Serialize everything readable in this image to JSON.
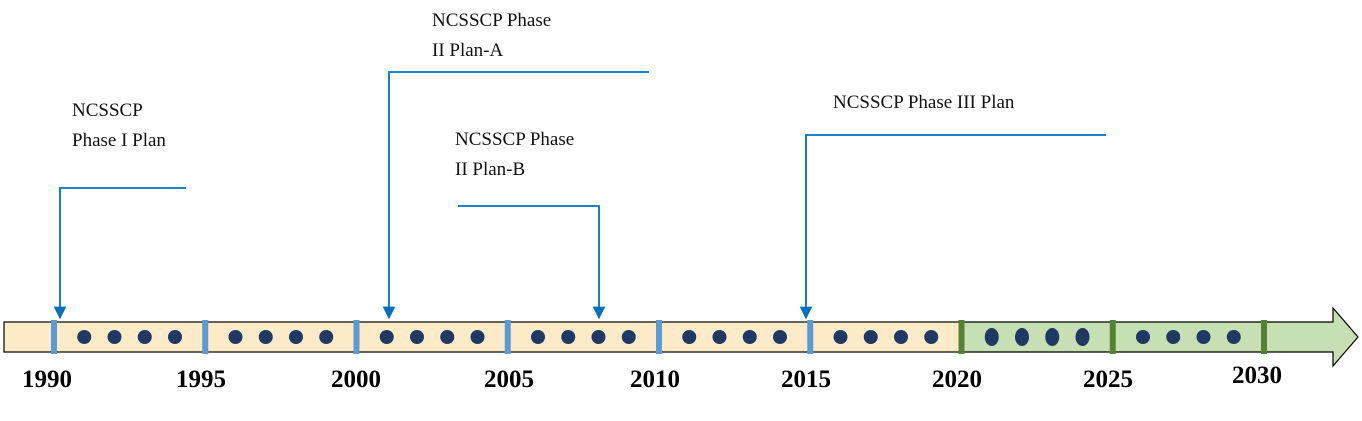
{
  "timeline": {
    "past_fill": "#fdebc8",
    "future_fill": "#c6e0b4",
    "past_tick_color": "#5b9bd5",
    "future_tick_color": "#548235",
    "dot_color": "#1f3864",
    "callout_color": "#0070c0",
    "years": [
      "1990",
      "1995",
      "2000",
      "2005",
      "2010",
      "2015",
      "2020",
      "2025",
      "2030"
    ],
    "dot_groups": 8,
    "dots_per_group": 4
  },
  "callouts": [
    {
      "id": "phase-1",
      "lines": [
        "NCSSCP",
        "Phase I Plan"
      ],
      "target_year": "1990"
    },
    {
      "id": "phase-2a",
      "lines": [
        "NCSSCP Phase",
        "II Plan-A"
      ],
      "target_year": "2001"
    },
    {
      "id": "phase-2b",
      "lines": [
        "NCSSCP Phase",
        "II Plan-B"
      ],
      "target_year": "2008"
    },
    {
      "id": "phase-3",
      "lines": [
        "NCSSCP Phase III Plan"
      ],
      "target_year": "2015"
    }
  ]
}
